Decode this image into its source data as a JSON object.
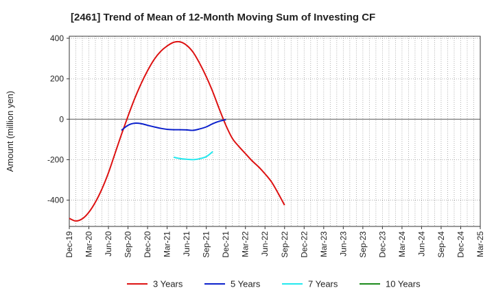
{
  "chart_data": {
    "type": "line",
    "title": "[2461]  Trend of Mean of 12-Month Moving Sum of Investing CF",
    "xlabel": "",
    "ylabel": "Amount (million yen)",
    "ylim": [
      -530,
      410
    ],
    "yticks": [
      400,
      200,
      0,
      -200,
      -400
    ],
    "x_ticks": [
      "Dec-19",
      "Mar-20",
      "Jun-20",
      "Sep-20",
      "Dec-20",
      "Mar-21",
      "Jun-21",
      "Sep-21",
      "Dec-21",
      "Mar-22",
      "Jun-22",
      "Sep-22",
      "Dec-22",
      "Mar-23",
      "Jun-23",
      "Sep-23",
      "Dec-23",
      "Mar-24",
      "Jun-24",
      "Sep-24",
      "Dec-24",
      "Mar-25"
    ],
    "legend_position": "bottom",
    "grid": true,
    "series": [
      {
        "name": "3 Years",
        "color": "#dd1111",
        "start_index": 0,
        "values": [
          -490,
          -503,
          -492,
          -460,
          -410,
          -345,
          -265,
          -170,
          -75,
          15,
          100,
          175,
          240,
          295,
          335,
          362,
          380,
          382,
          365,
          330,
          275,
          210,
          135,
          50,
          -30,
          -95,
          -135,
          -170,
          -205,
          -235,
          -270,
          -310,
          -365,
          -425
        ]
      },
      {
        "name": "5 Years",
        "color": "#0a1fcc",
        "start_index": 8,
        "values": [
          -55,
          -30,
          -20,
          -22,
          -30,
          -38,
          -45,
          -50,
          -52,
          -52,
          -53,
          -55,
          -48,
          -38,
          -22,
          -10,
          -2
        ]
      },
      {
        "name": "7 Years",
        "color": "#22e8ee",
        "start_index": 16,
        "values": [
          -188,
          -195,
          -198,
          -200,
          -195,
          -185,
          -160
        ]
      },
      {
        "name": "10 Years",
        "color": "#1a8a1a",
        "start_index": 0,
        "values": []
      }
    ]
  }
}
